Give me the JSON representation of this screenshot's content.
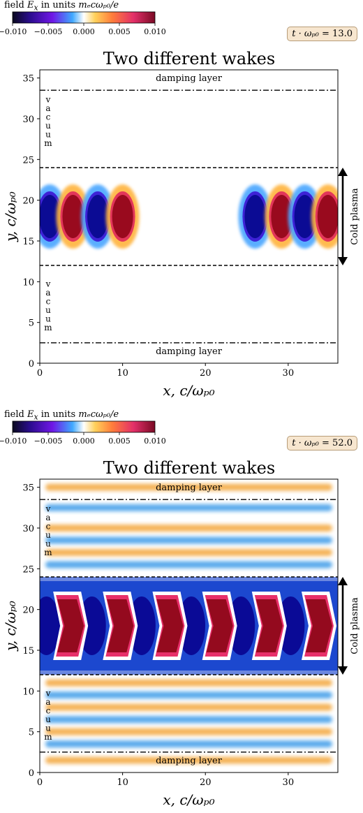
{
  "colorbar": {
    "label_prefix": "field",
    "label_symbol": "E",
    "label_sub": "x",
    "label_mid": "in units",
    "label_units": "mₑcωₚ₀/e",
    "ticks": [
      "−0.010",
      "−0.005",
      "0.000",
      "0.005",
      "0.010"
    ],
    "range": [
      -0.01,
      0.01
    ]
  },
  "chart_data": [
    {
      "type": "heatmap",
      "title": "Two different wakes",
      "time_label": "t · ωₚ₀",
      "time_value": "13.0",
      "xlabel": "x, c/ωₚ₀",
      "ylabel": "y, c/ωₚ₀",
      "xlim": [
        0,
        36
      ],
      "ylim": [
        0,
        36
      ],
      "x_ticks": [
        "0",
        "10",
        "20",
        "30"
      ],
      "y_ticks": [
        "0",
        "5",
        "10",
        "15",
        "20",
        "25",
        "30",
        "35"
      ],
      "damping_layer_top_y": 33.5,
      "damping_layer_bottom_y": 2.5,
      "plasma_top_y": 24,
      "plasma_bottom_y": 12,
      "annotations": {
        "damping_top": "damping layer",
        "damping_bottom": "damping layer",
        "vacuum_upper": "vacuum",
        "vacuum_lower": "vacuum",
        "plasma": "Cold plasma"
      },
      "wake_blobs": [
        {
          "x": 1.2,
          "value": -0.01
        },
        {
          "x": 4.0,
          "value": 0.01
        },
        {
          "x": 7.0,
          "value": -0.01
        },
        {
          "x": 10.0,
          "value": 0.01
        },
        {
          "x": 26.0,
          "value": -0.01
        },
        {
          "x": 29.2,
          "value": 0.01
        },
        {
          "x": 32.0,
          "value": -0.01
        },
        {
          "x": 34.8,
          "value": 0.01
        }
      ]
    },
    {
      "type": "heatmap",
      "title": "Two different wakes",
      "time_label": "t · ωₚ₀",
      "time_value": "52.0",
      "xlabel": "x, c/ωₚ₀",
      "ylabel": "y, c/ωₚ₀",
      "xlim": [
        0,
        36
      ],
      "ylim": [
        0,
        36
      ],
      "x_ticks": [
        "0",
        "10",
        "20",
        "30"
      ],
      "y_ticks": [
        "0",
        "5",
        "10",
        "15",
        "20",
        "25",
        "30",
        "35"
      ],
      "damping_layer_top_y": 33.5,
      "damping_layer_bottom_y": 2.5,
      "plasma_top_y": 24,
      "plasma_bottom_y": 12,
      "annotations": {
        "damping_top": "damping layer",
        "damping_bottom": "damping layer",
        "vacuum_upper": "vacuum",
        "vacuum_lower": "vacuum",
        "plasma": "Cold plasma"
      },
      "chevron_wake_x": [
        0.8,
        3.3,
        6.3,
        9.3,
        12.3,
        15.3,
        18.3,
        21.3,
        24.3,
        27.3,
        30.3,
        33.3
      ],
      "chevron_wake_values": [
        -0.01,
        0.01,
        -0.01,
        0.01,
        -0.01,
        0.01,
        -0.01,
        0.01,
        -0.01,
        0.01,
        -0.01,
        0.01
      ],
      "vacuum_stripes_y": [
        {
          "y": 35.0,
          "value": 0.006
        },
        {
          "y": 32.5,
          "value": -0.006
        },
        {
          "y": 30.0,
          "value": 0.006
        },
        {
          "y": 28.5,
          "value": -0.005
        },
        {
          "y": 27.0,
          "value": 0.006
        },
        {
          "y": 25.5,
          "value": -0.005
        },
        {
          "y": 11.0,
          "value": 0.006
        },
        {
          "y": 9.5,
          "value": -0.005
        },
        {
          "y": 8.0,
          "value": 0.006
        },
        {
          "y": 6.5,
          "value": -0.005
        },
        {
          "y": 5.0,
          "value": 0.006
        },
        {
          "y": 3.5,
          "value": -0.005
        },
        {
          "y": 1.5,
          "value": 0.005
        }
      ]
    }
  ]
}
